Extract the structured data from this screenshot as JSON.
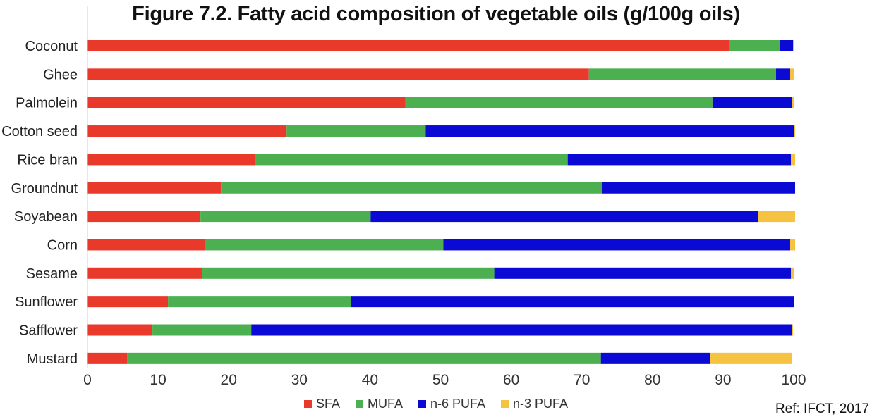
{
  "chart_data": {
    "type": "bar",
    "orientation": "horizontal",
    "stacked": true,
    "title": "Figure 7.2. Fatty acid composition of vegetable oils (g/100g oils)",
    "categories": [
      "Coconut",
      "Ghee",
      "Palmolein",
      "Cotton seed",
      "Rice bran",
      "Groundnut",
      "Soyabean",
      "Corn",
      "Sesame",
      "Sunflower",
      "Safflower",
      "Mustard"
    ],
    "series": [
      {
        "name": "SFA",
        "color": "#e8392b",
        "values": [
          90.9,
          71.0,
          45.0,
          28.2,
          23.7,
          18.9,
          16.0,
          16.6,
          16.2,
          11.4,
          9.2,
          5.6
        ]
      },
      {
        "name": "MUFA",
        "color": "#4caf50",
        "values": [
          7.2,
          26.5,
          43.5,
          19.7,
          44.3,
          54.0,
          24.1,
          33.8,
          41.4,
          25.9,
          14.0,
          67.1
        ]
      },
      {
        "name": "n-6 PUFA",
        "color": "#0a0ad4",
        "values": [
          1.8,
          2.0,
          11.2,
          52.1,
          31.6,
          27.3,
          54.9,
          49.1,
          42.0,
          62.7,
          76.5,
          15.5
        ]
      },
      {
        "name": "n-3 PUFA",
        "color": "#f5c242",
        "values": [
          0.1,
          0.5,
          0.3,
          0.2,
          0.6,
          0.0,
          5.2,
          0.7,
          0.4,
          0.0,
          0.2,
          11.6
        ]
      }
    ],
    "xlim": [
      0,
      100
    ],
    "xticks": [
      "0",
      "10",
      "20",
      "30",
      "40",
      "50",
      "60",
      "70",
      "80",
      "90",
      "100"
    ],
    "grid": false,
    "legend_position": "bottom"
  },
  "ref_note": "Ref: IFCT, 2017"
}
